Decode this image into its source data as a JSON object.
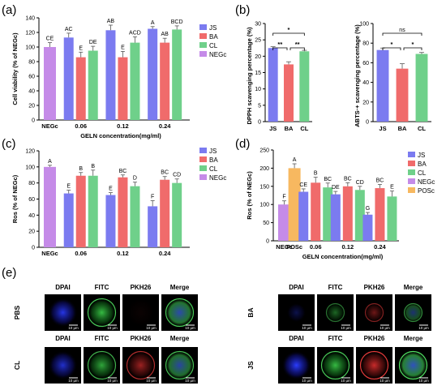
{
  "panels": {
    "a": "(a)",
    "b": "(b)",
    "c": "(c)",
    "d": "(d)",
    "e": "(e)"
  },
  "colors": {
    "JS": "#7b7bf0",
    "BA": "#f06b6b",
    "CL": "#6fd08a",
    "NEGc": "#c58be8",
    "POSc": "#f7b860"
  },
  "chart_data": [
    {
      "id": "a",
      "type": "bar",
      "ylabel": "Cell viability (% of NEGc)",
      "xlabel": "GELN concentration(mg/ml)",
      "ylim": [
        0,
        140
      ],
      "yticks": [
        0,
        20,
        40,
        60,
        80,
        100,
        120,
        140
      ],
      "groups": [
        {
          "label": "NEGc",
          "bars": [
            {
              "series": "NEGc",
              "value": 100,
              "err": 6,
              "sig": "CE"
            }
          ]
        },
        {
          "label": "0.06",
          "bars": [
            {
              "series": "JS",
              "value": 113,
              "err": 6,
              "sig": "AC"
            },
            {
              "series": "BA",
              "value": 86,
              "err": 7,
              "sig": "E"
            },
            {
              "series": "CL",
              "value": 95,
              "err": 6,
              "sig": "DE"
            }
          ]
        },
        {
          "label": "0.12",
          "bars": [
            {
              "series": "JS",
              "value": 123,
              "err": 7,
              "sig": "AB"
            },
            {
              "series": "BA",
              "value": 86,
              "err": 8,
              "sig": "E"
            },
            {
              "series": "CL",
              "value": 106,
              "err": 8,
              "sig": "ACD"
            }
          ]
        },
        {
          "label": "0.24",
          "bars": [
            {
              "series": "JS",
              "value": 125,
              "err": 3,
              "sig": "A"
            },
            {
              "series": "BA",
              "value": 106,
              "err": 6,
              "sig": "AB"
            },
            {
              "series": "CL",
              "value": 124,
              "err": 5,
              "sig": "BCD"
            }
          ]
        }
      ],
      "legend": [
        "JS",
        "BA",
        "CL",
        "NEGc"
      ]
    },
    {
      "id": "b1",
      "type": "bar",
      "ylabel": "DPPH scavenging percentage (%)",
      "ylim": [
        0,
        30
      ],
      "yticks": [
        0,
        5,
        10,
        15,
        20,
        25,
        30
      ],
      "categories": [
        "JS",
        "BA",
        "CL"
      ],
      "values": [
        22.5,
        17.5,
        21.5
      ],
      "errors": [
        0.4,
        0.8,
        0.3
      ],
      "brackets": [
        {
          "from": 0,
          "to": 1,
          "label": "**",
          "level": 1
        },
        {
          "from": 1,
          "to": 2,
          "label": "**",
          "level": 1
        },
        {
          "from": 0,
          "to": 2,
          "label": "*",
          "level": 2
        }
      ]
    },
    {
      "id": "b2",
      "type": "bar",
      "ylabel": "ABTS·+ scavenging percentage (%)",
      "ylim": [
        0,
        100
      ],
      "yticks": [
        0,
        20,
        40,
        60,
        80,
        100
      ],
      "categories": [
        "JS",
        "BA",
        "CL"
      ],
      "values": [
        73,
        54,
        69
      ],
      "errors": [
        2,
        5,
        1.5
      ],
      "brackets": [
        {
          "from": 0,
          "to": 1,
          "label": "*",
          "level": 1
        },
        {
          "from": 1,
          "to": 2,
          "label": "*",
          "level": 1
        },
        {
          "from": 0,
          "to": 2,
          "label": "ns",
          "level": 2
        }
      ]
    },
    {
      "id": "c",
      "type": "bar",
      "ylabel": "Ros (% of NEGc)",
      "ylim": [
        0,
        120
      ],
      "yticks": [
        0,
        20,
        40,
        60,
        80,
        100,
        120
      ],
      "groups": [
        {
          "label": "NEGc",
          "bars": [
            {
              "series": "NEGc",
              "value": 100,
              "err": 2,
              "sig": "A"
            }
          ]
        },
        {
          "label": "0.06",
          "bars": [
            {
              "series": "JS",
              "value": 67,
              "err": 4,
              "sig": "E"
            },
            {
              "series": "BA",
              "value": 89,
              "err": 4,
              "sig": "B"
            },
            {
              "series": "CL",
              "value": 89,
              "err": 7,
              "sig": "B"
            }
          ]
        },
        {
          "label": "0.12",
          "bars": [
            {
              "series": "JS",
              "value": 65,
              "err": 3,
              "sig": "E"
            },
            {
              "series": "BA",
              "value": 87,
              "err": 3,
              "sig": "BC"
            },
            {
              "series": "CL",
              "value": 76,
              "err": 5,
              "sig": "D"
            }
          ]
        },
        {
          "label": "0.24",
          "bars": [
            {
              "series": "JS",
              "value": 51,
              "err": 7,
              "sig": "F"
            },
            {
              "series": "BA",
              "value": 84,
              "err": 4,
              "sig": "BC"
            },
            {
              "series": "CL",
              "value": 80,
              "err": 5,
              "sig": "CD"
            }
          ]
        }
      ],
      "legend": [
        "JS",
        "BA",
        "CL",
        "NEGc"
      ]
    },
    {
      "id": "d",
      "type": "bar",
      "ylabel": "Ros (% of NEGc)",
      "xlabel": "GELN concentration(mg/ml)",
      "ylim": [
        0,
        250
      ],
      "yticks": [
        0,
        50,
        100,
        150,
        200,
        250
      ],
      "groups": [
        {
          "label": "NEGc",
          "bars": [
            {
              "series": "NEGc",
              "value": 100,
              "err": 10,
              "sig": "F"
            }
          ]
        },
        {
          "label": "POSc",
          "bars": [
            {
              "series": "POSc",
              "value": 200,
              "err": 12,
              "sig": "A"
            }
          ]
        },
        {
          "label": "0.06",
          "bars": [
            {
              "series": "JS",
              "value": 135,
              "err": 8,
              "sig": "CE"
            },
            {
              "series": "BA",
              "value": 160,
              "err": 15,
              "sig": "B"
            },
            {
              "series": "CL",
              "value": 147,
              "err": 12,
              "sig": "BC"
            }
          ]
        },
        {
          "label": "0.12",
          "bars": [
            {
              "series": "JS",
              "value": 128,
              "err": 8,
              "sig": "DE"
            },
            {
              "series": "BA",
              "value": 150,
              "err": 10,
              "sig": "BC"
            },
            {
              "series": "CL",
              "value": 140,
              "err": 10,
              "sig": "CD"
            }
          ]
        },
        {
          "label": "0.24",
          "bars": [
            {
              "series": "JS",
              "value": 72,
              "err": 6,
              "sig": "G"
            },
            {
              "series": "BA",
              "value": 145,
              "err": 10,
              "sig": "BC"
            },
            {
              "series": "CL",
              "value": 122,
              "err": 15,
              "sig": "E"
            }
          ]
        }
      ],
      "legend": [
        "JS",
        "BA",
        "CL",
        "NEGc",
        "POSc"
      ]
    }
  ],
  "micrographs": {
    "columns": [
      "DPAI",
      "FITC",
      "PKH26",
      "Merge"
    ],
    "scale": "10 μm",
    "groups": [
      {
        "label": "PBS"
      },
      {
        "label": "BA"
      },
      {
        "label": "CL"
      },
      {
        "label": "JS"
      }
    ]
  }
}
